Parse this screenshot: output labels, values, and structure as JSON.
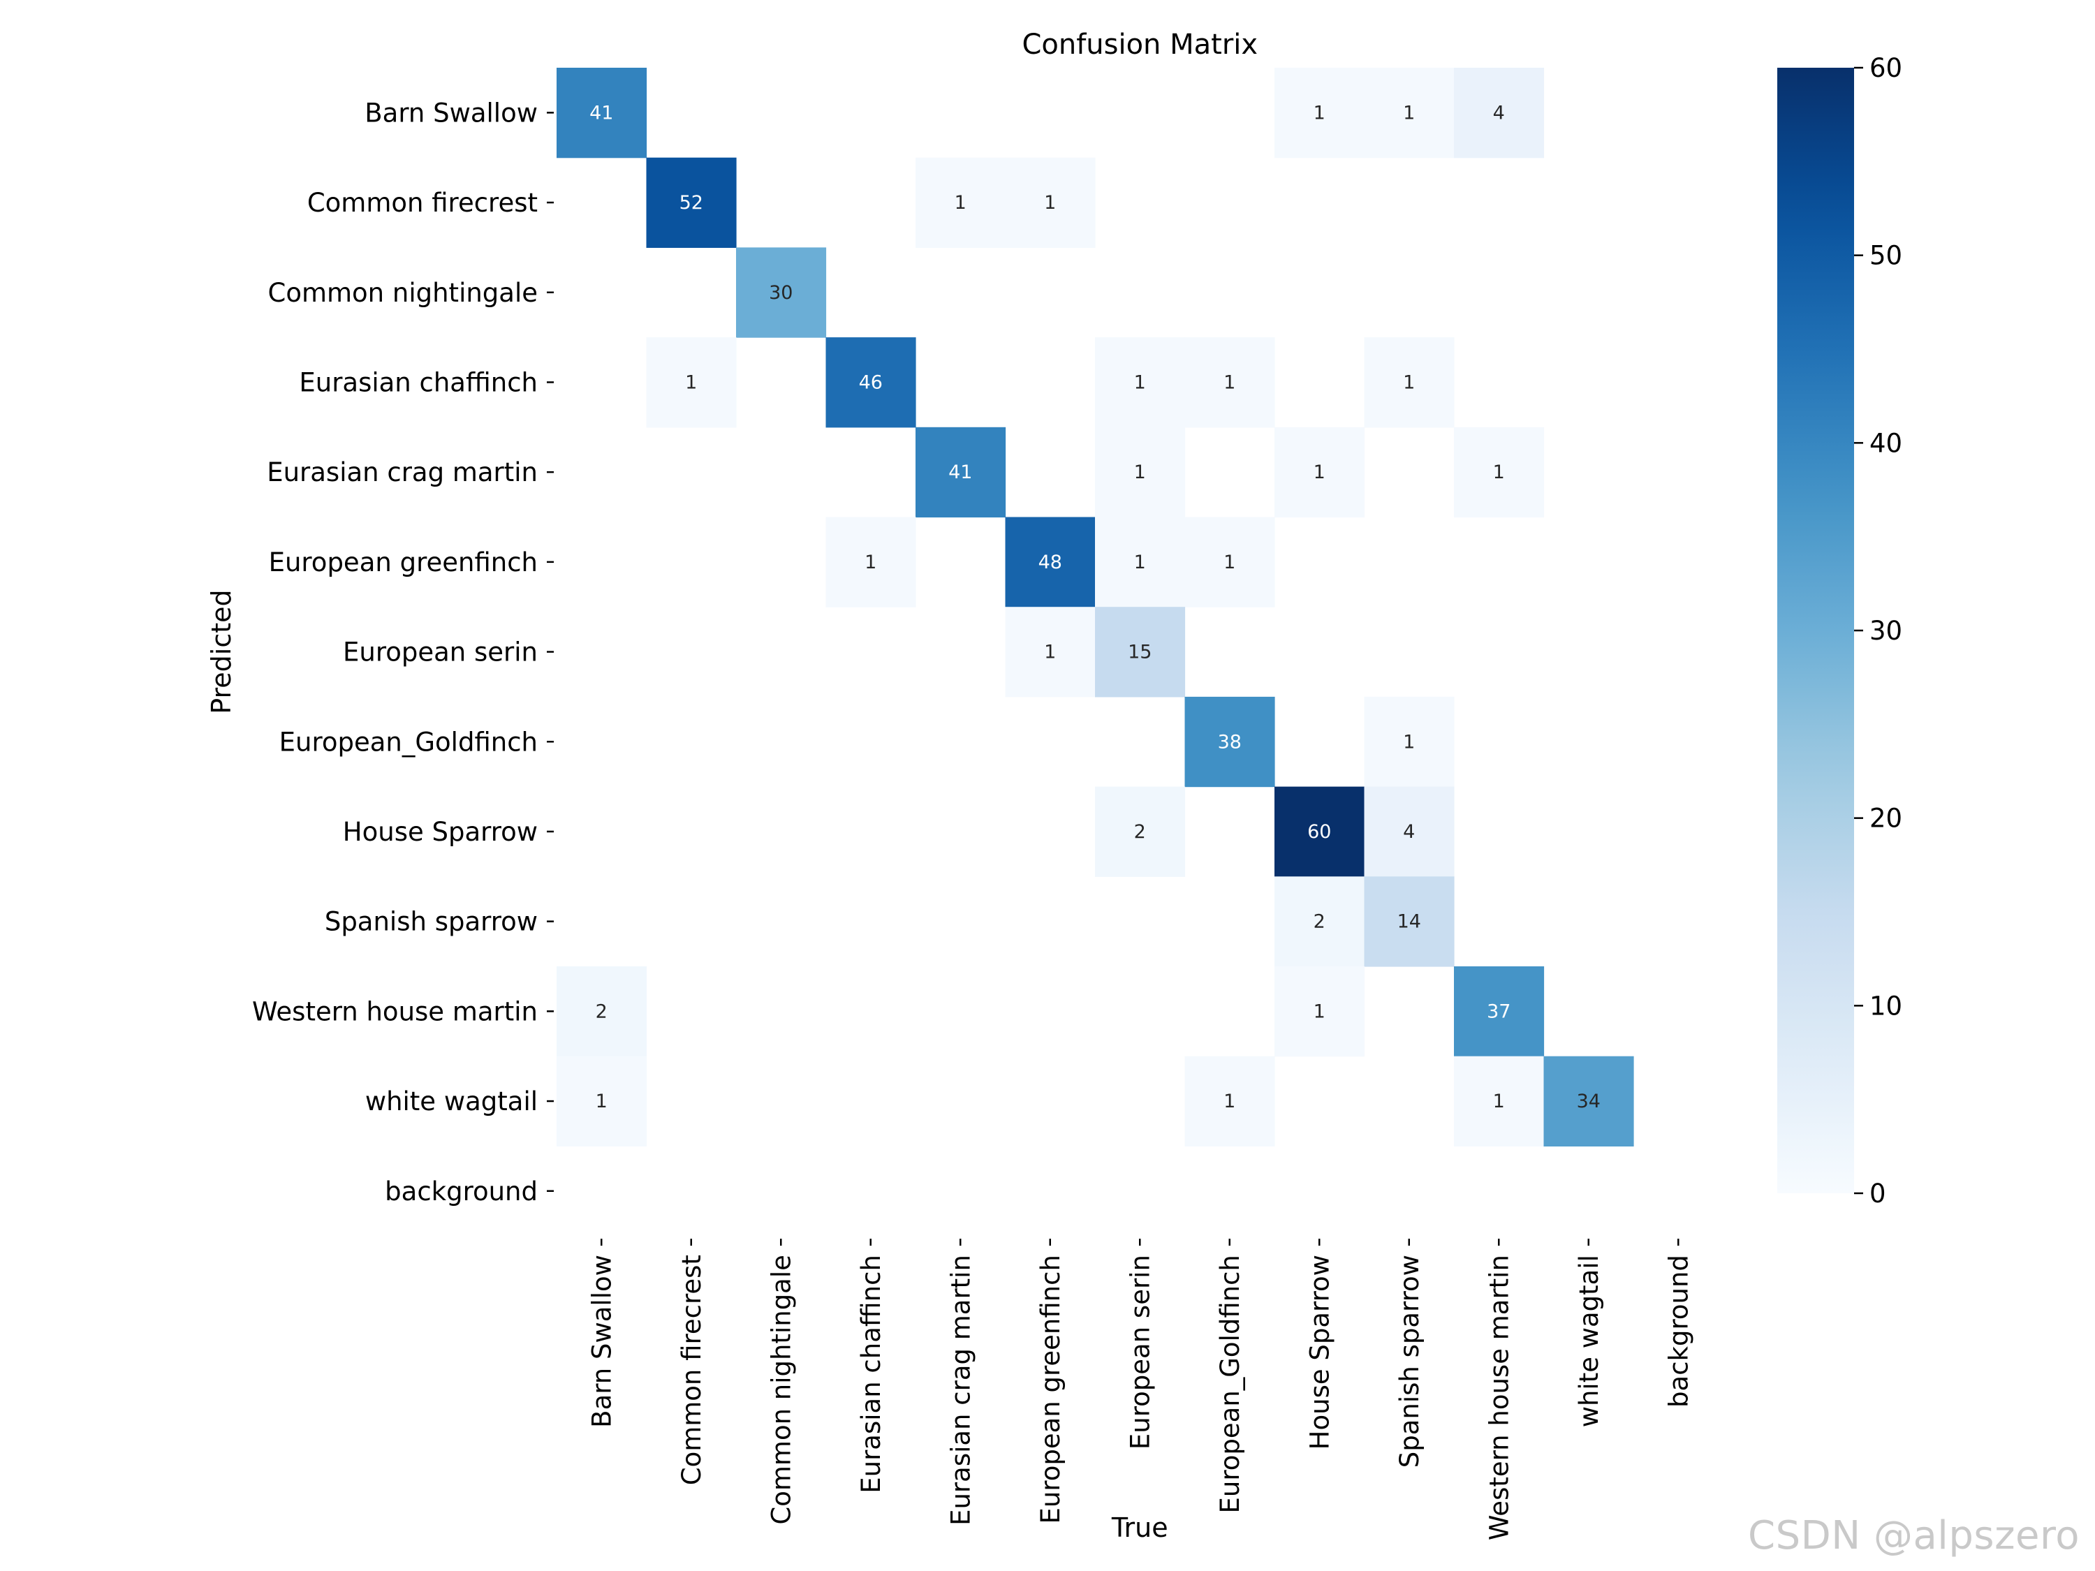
{
  "chart_data": {
    "type": "heatmap",
    "title": "Confusion Matrix",
    "xlabel": "True",
    "ylabel": "Predicted",
    "categories": [
      "Barn Swallow",
      "Common firecrest",
      "Common nightingale",
      "Eurasian chaffinch",
      "Eurasian crag martin",
      "European greenfinch",
      "European serin",
      "European_Goldfinch",
      "House Sparrow",
      "Spanish sparrow",
      "Western house martin",
      "white wagtail",
      "background"
    ],
    "matrix": [
      [
        41,
        0,
        0,
        0,
        0,
        0,
        0,
        0,
        1,
        1,
        4,
        0,
        0
      ],
      [
        0,
        52,
        0,
        0,
        1,
        1,
        0,
        0,
        0,
        0,
        0,
        0,
        0
      ],
      [
        0,
        0,
        30,
        0,
        0,
        0,
        0,
        0,
        0,
        0,
        0,
        0,
        0
      ],
      [
        0,
        1,
        0,
        46,
        0,
        0,
        1,
        1,
        0,
        1,
        0,
        0,
        0
      ],
      [
        0,
        0,
        0,
        0,
        41,
        0,
        1,
        0,
        1,
        0,
        1,
        0,
        0
      ],
      [
        0,
        0,
        0,
        1,
        0,
        48,
        1,
        1,
        0,
        0,
        0,
        0,
        0
      ],
      [
        0,
        0,
        0,
        0,
        0,
        1,
        15,
        0,
        0,
        0,
        0,
        0,
        0
      ],
      [
        0,
        0,
        0,
        0,
        0,
        0,
        0,
        38,
        0,
        1,
        0,
        0,
        0
      ],
      [
        0,
        0,
        0,
        0,
        0,
        0,
        2,
        0,
        60,
        4,
        0,
        0,
        0
      ],
      [
        0,
        0,
        0,
        0,
        0,
        0,
        0,
        0,
        2,
        14,
        0,
        0,
        0
      ],
      [
        2,
        0,
        0,
        0,
        0,
        0,
        0,
        0,
        1,
        0,
        37,
        0,
        0
      ],
      [
        1,
        0,
        0,
        0,
        0,
        0,
        0,
        1,
        0,
        0,
        1,
        34,
        0
      ],
      [
        0,
        0,
        0,
        0,
        0,
        0,
        0,
        0,
        0,
        0,
        0,
        0,
        0
      ]
    ],
    "value_range": [
      0,
      60
    ],
    "colormap": "Blues",
    "colorbar_ticks": [
      0,
      10,
      20,
      30,
      40,
      50,
      60
    ],
    "zero_cells_blank": true
  },
  "watermark": "CSDN @alpszero"
}
